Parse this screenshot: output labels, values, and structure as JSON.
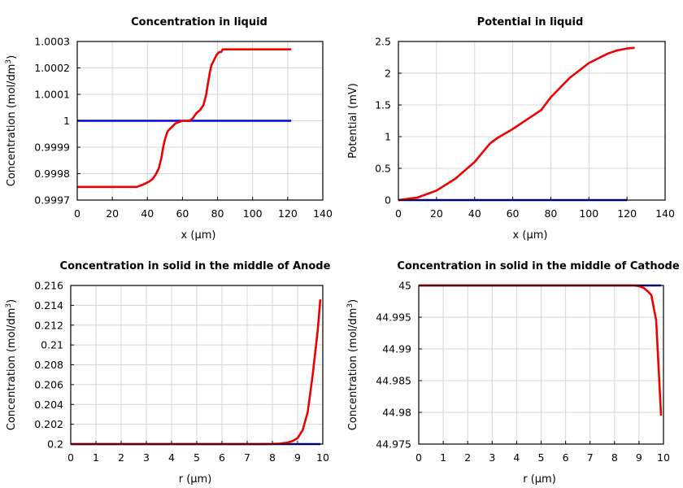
{
  "chart_data": [
    {
      "type": "line",
      "title": "Concentration in liquid",
      "xlabel": "x (µm)",
      "ylabel": "Concentration (mol/dm³)",
      "xlim": [
        0,
        140
      ],
      "ylim": [
        0.9997,
        1.0003
      ],
      "xticks": [
        "0",
        "20",
        "40",
        "60",
        "80",
        "100",
        "120",
        "140"
      ],
      "yticks": [
        "0.9997",
        "0.9998",
        "0.9999",
        "1",
        "1.0001",
        "1.0002",
        "1.0003"
      ],
      "grid": true,
      "series": [
        {
          "color": "#0000dd",
          "x": [
            0,
            122
          ],
          "y": [
            1.0,
            1.0
          ]
        },
        {
          "color": "#ee0000",
          "x": [
            0,
            34,
            38,
            41,
            43,
            45,
            46.5,
            48,
            49,
            50,
            51.5,
            53,
            56,
            60,
            64,
            66,
            68,
            70,
            72,
            73.5,
            74.5,
            75.5,
            76.5,
            78,
            79.5,
            81,
            82,
            83,
            84,
            86,
            100,
            122
          ],
          "y": [
            0.99975,
            0.99975,
            0.99976,
            0.99977,
            0.99978,
            0.9998,
            0.99982,
            0.99986,
            0.9999,
            0.99993,
            0.99996,
            0.99997,
            0.99999,
            1.0,
            1.0,
            1.00001,
            1.00003,
            1.00004,
            1.00006,
            1.0001,
            1.00014,
            1.00018,
            1.00021,
            1.00023,
            1.00025,
            1.00026,
            1.00026,
            1.00027,
            1.00027,
            1.00027,
            1.00027,
            1.00027
          ]
        }
      ]
    },
    {
      "type": "line",
      "title": "Potential in liquid",
      "xlabel": "x (µm)",
      "ylabel": "Potential (mV)",
      "xlim": [
        0,
        140
      ],
      "ylim": [
        0,
        2.5
      ],
      "xticks": [
        "0",
        "20",
        "40",
        "60",
        "80",
        "100",
        "120",
        "140"
      ],
      "yticks": [
        "0",
        "0.5",
        "1",
        "1.5",
        "2",
        "2.5"
      ],
      "grid": true,
      "series": [
        {
          "color": "#0000dd",
          "x": [
            0,
            120
          ],
          "y": [
            0,
            0
          ]
        },
        {
          "color": "#ee0000",
          "x": [
            0,
            10,
            20,
            30,
            40,
            48,
            52,
            60,
            66,
            72,
            75,
            80,
            90,
            100,
            110,
            115,
            120,
            124
          ],
          "y": [
            0,
            0.04,
            0.15,
            0.34,
            0.6,
            0.89,
            0.98,
            1.12,
            1.24,
            1.36,
            1.42,
            1.62,
            1.93,
            2.16,
            2.31,
            2.36,
            2.39,
            2.4
          ]
        }
      ]
    },
    {
      "type": "line",
      "title": "Concentration in solid in the middle of Anode",
      "xlabel": "r (µm)",
      "ylabel": "Concentration (mol/dm³)",
      "xlim": [
        0,
        10
      ],
      "ylim": [
        0.2,
        0.216
      ],
      "xticks": [
        "0",
        "1",
        "2",
        "3",
        "4",
        "5",
        "6",
        "7",
        "8",
        "9",
        "10"
      ],
      "yticks": [
        "0.2",
        "0.202",
        "0.204",
        "0.206",
        "0.208",
        "0.21",
        "0.212",
        "0.214",
        "0.216"
      ],
      "grid": true,
      "series": [
        {
          "color": "#0000dd",
          "x": [
            0,
            9.9
          ],
          "y": [
            0.2,
            0.2
          ]
        },
        {
          "color": "#ee0000",
          "x": [
            0,
            7.5,
            8,
            8.3,
            8.6,
            8.8,
            9.0,
            9.2,
            9.4,
            9.6,
            9.8,
            9.9
          ],
          "y": [
            0.2,
            0.2,
            0.20002,
            0.20005,
            0.20015,
            0.2003,
            0.2006,
            0.2014,
            0.2032,
            0.207,
            0.2115,
            0.2146
          ]
        }
      ]
    },
    {
      "type": "line",
      "title": "Concentration in solid in the middle of Cathode",
      "xlabel": "r (µm)",
      "ylabel": "Concentration (mol/dm³)",
      "xlim": [
        0,
        10
      ],
      "ylim": [
        44.975,
        45
      ],
      "xticks": [
        "0",
        "1",
        "2",
        "3",
        "4",
        "5",
        "6",
        "7",
        "8",
        "9",
        "10"
      ],
      "yticks": [
        "44.975",
        "44.98",
        "44.985",
        "44.99",
        "44.995",
        "45"
      ],
      "grid": true,
      "series": [
        {
          "color": "#0000dd",
          "x": [
            0,
            9.9
          ],
          "y": [
            45,
            45
          ]
        },
        {
          "color": "#ee0000",
          "x": [
            0,
            8.8,
            9.0,
            9.2,
            9.35,
            9.5,
            9.7,
            9.9
          ],
          "y": [
            45,
            45,
            44.9999,
            44.9996,
            44.9991,
            44.9985,
            44.9945,
            44.9795
          ]
        }
      ]
    }
  ]
}
